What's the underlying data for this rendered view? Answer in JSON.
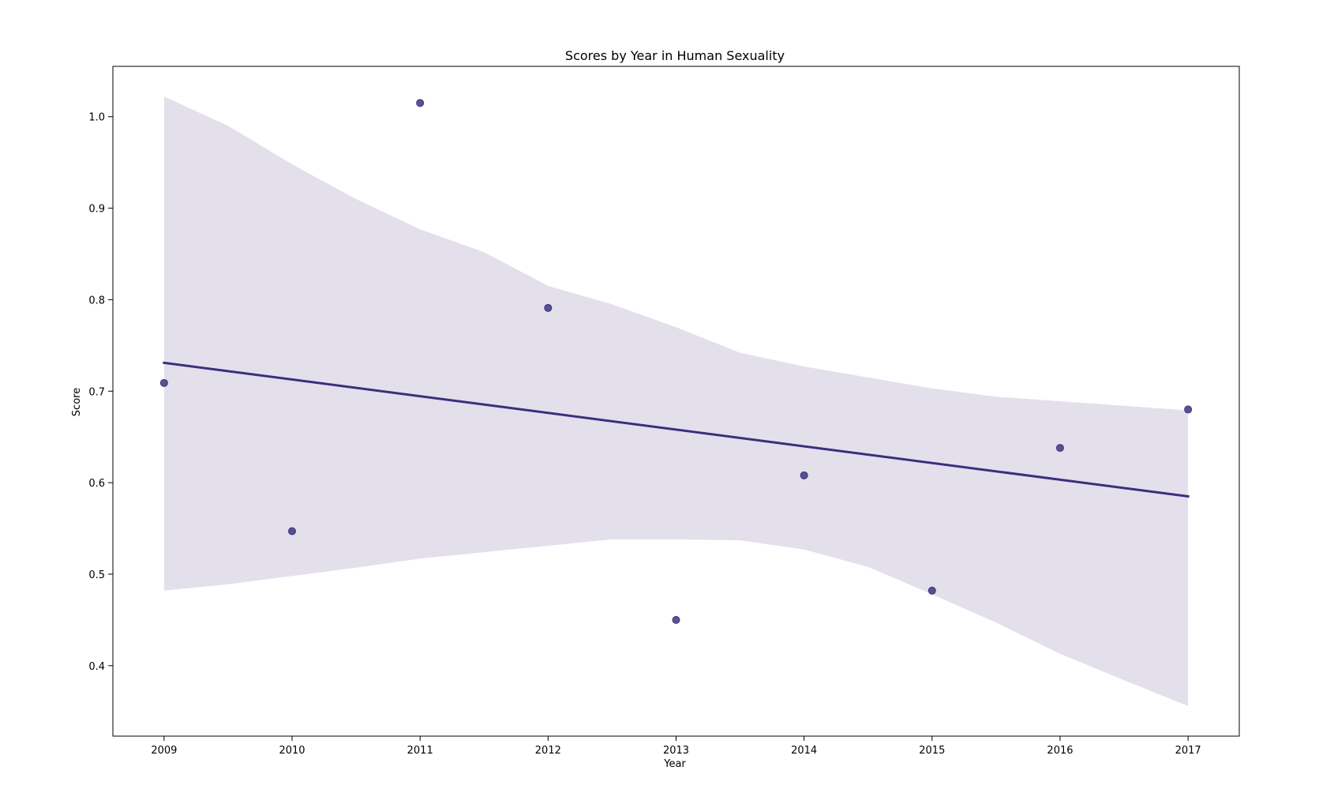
{
  "chart_data": {
    "type": "scatter",
    "title": "Scores by Year in Human Sexuality",
    "xlabel": "Year",
    "ylabel": "Score",
    "x_ticks": [
      2009,
      2010,
      2011,
      2012,
      2013,
      2014,
      2015,
      2016,
      2017
    ],
    "y_ticks": [
      "0.4",
      "0.5",
      "0.6",
      "0.7",
      "0.8",
      "0.9",
      "1.0"
    ],
    "xlim": [
      2008.6,
      2017.4
    ],
    "ylim": [
      0.323,
      1.055
    ],
    "grid": false,
    "points": [
      {
        "x": 2009,
        "y": 0.709
      },
      {
        "x": 2010,
        "y": 0.547
      },
      {
        "x": 2011,
        "y": 1.015
      },
      {
        "x": 2012,
        "y": 0.791
      },
      {
        "x": 2013,
        "y": 0.45
      },
      {
        "x": 2014,
        "y": 0.608
      },
      {
        "x": 2015,
        "y": 0.482
      },
      {
        "x": 2016,
        "y": 0.638
      },
      {
        "x": 2017,
        "y": 0.68
      }
    ],
    "regression_line": {
      "x": [
        2009,
        2017
      ],
      "y": [
        0.731,
        0.585
      ]
    },
    "confidence_band": {
      "x": [
        2009,
        2009.5,
        2010,
        2010.5,
        2011,
        2011.5,
        2012,
        2012.5,
        2013,
        2013.5,
        2014,
        2014.5,
        2015,
        2015.5,
        2016,
        2016.5,
        2017
      ],
      "upper": [
        1.022,
        0.99,
        0.948,
        0.91,
        0.877,
        0.852,
        0.815,
        0.795,
        0.77,
        0.742,
        0.727,
        0.715,
        0.703,
        0.694,
        0.689,
        0.684,
        0.679
      ],
      "lower": [
        0.482,
        0.489,
        0.498,
        0.507,
        0.517,
        0.524,
        0.531,
        0.538,
        0.538,
        0.537,
        0.527,
        0.508,
        0.478,
        0.447,
        0.413,
        0.384,
        0.356
      ]
    },
    "colors": {
      "point": "#3f3480",
      "line": "#3b2f7d",
      "band": "#e3e0ec"
    }
  }
}
